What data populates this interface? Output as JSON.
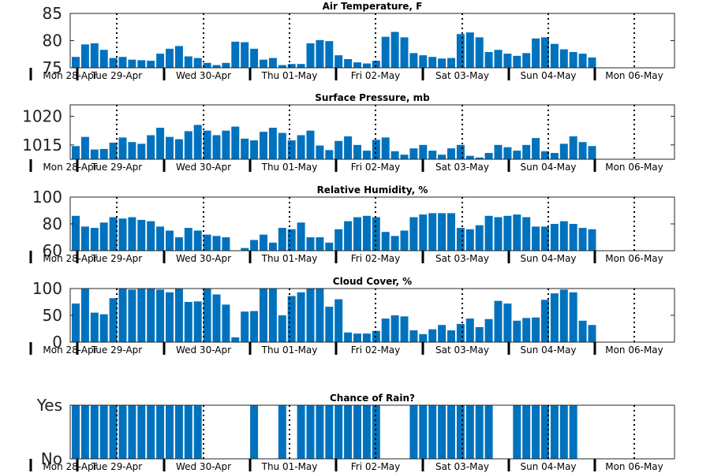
{
  "chart_data": [
    {
      "type": "bar",
      "title": "Air Temperature, F",
      "ylim": [
        75,
        85
      ],
      "yticks": [
        "75",
        "80",
        "85"
      ],
      "bar_color": "#0072BD",
      "values": [
        77.0,
        79.3,
        79.5,
        78.3,
        76.8,
        77.0,
        76.5,
        76.4,
        76.3,
        77.6,
        78.5,
        79.0,
        77.1,
        76.8,
        75.9,
        75.5,
        75.9,
        79.8,
        79.7,
        78.5,
        76.5,
        76.8,
        75.5,
        75.7,
        75.7,
        79.5,
        80.1,
        79.9,
        77.3,
        76.6,
        76.0,
        75.8,
        76.3,
        80.7,
        81.6,
        80.6,
        77.7,
        77.3,
        77.0,
        76.7,
        76.8,
        81.2,
        81.5,
        80.6,
        77.9,
        78.3,
        77.6,
        77.2,
        77.7,
        80.4,
        80.6,
        79.4,
        78.4,
        77.9,
        77.6,
        76.9
      ],
      "xtick_labels": [
        "Mon 28-Apr",
        "Tue 29-Apr",
        "Wed 30-Apr",
        "Thu 01-May",
        "Fri 02-May",
        "Sat 03-May",
        "Sun 04-May",
        "Mon 06-May"
      ]
    },
    {
      "type": "bar",
      "title": "Surface Pressure, mb",
      "ylim": [
        1012.5,
        1022
      ],
      "yticks": [
        "1015",
        "1020"
      ],
      "bar_color": "#0072BD",
      "values": [
        1014.8,
        1016.4,
        1014.2,
        1014.3,
        1015.4,
        1016.3,
        1015.5,
        1015.2,
        1016.7,
        1018.0,
        1016.4,
        1016.0,
        1017.4,
        1018.5,
        1017.5,
        1016.7,
        1017.5,
        1018.2,
        1016.1,
        1015.8,
        1017.3,
        1018.0,
        1017.1,
        1015.8,
        1016.7,
        1017.5,
        1014.9,
        1014.1,
        1015.7,
        1016.5,
        1015.0,
        1014.0,
        1015.9,
        1016.3,
        1013.9,
        1013.3,
        1014.4,
        1015.0,
        1014.0,
        1013.3,
        1014.4,
        1015.0,
        1013.1,
        1012.8,
        1013.6,
        1015.0,
        1014.6,
        1014.0,
        1015.0,
        1016.2,
        1013.9,
        1013.6,
        1015.2,
        1016.5,
        1015.5,
        1014.8
      ],
      "xtick_labels": [
        "Mon 28-Apr",
        "Tue 29-Apr",
        "Wed 30-Apr",
        "Thu 01-May",
        "Fri 02-May",
        "Sat 03-May",
        "Sun 04-May",
        "Mon 06-May"
      ]
    },
    {
      "type": "bar",
      "title": "Relative Humidity, %",
      "ylim": [
        60,
        100
      ],
      "yticks": [
        "60",
        "80",
        "100"
      ],
      "bar_color": "#0072BD",
      "values": [
        86,
        78,
        77,
        81,
        85,
        84,
        85,
        83,
        82,
        78,
        75,
        70,
        77,
        75,
        72,
        71,
        70,
        58,
        62,
        68,
        72,
        66,
        77,
        76,
        81,
        70,
        70,
        66,
        76,
        82,
        85,
        86,
        85,
        74,
        71,
        75,
        85,
        87,
        88,
        88,
        88,
        77,
        76,
        79,
        86,
        85,
        86,
        87,
        85,
        78,
        78,
        80,
        82,
        80,
        77,
        76
      ],
      "xtick_labels": [
        "Mon 28-Apr",
        "Tue 29-Apr",
        "Wed 30-Apr",
        "Thu 01-May",
        "Fri 02-May",
        "Sat 03-May",
        "Sun 04-May",
        "Mon 06-May"
      ]
    },
    {
      "type": "bar",
      "title": "Cloud Cover, %",
      "ylim": [
        0,
        100
      ],
      "yticks": [
        "0",
        "50",
        "100"
      ],
      "bar_color": "#0072BD",
      "values": [
        72,
        100,
        55,
        52,
        82,
        100,
        98,
        100,
        100,
        98,
        93,
        100,
        75,
        76,
        100,
        89,
        70,
        9,
        57,
        58,
        100,
        100,
        50,
        86,
        93,
        100,
        100,
        66,
        80,
        18,
        16,
        16,
        21,
        44,
        50,
        48,
        22,
        15,
        24,
        32,
        22,
        34,
        44,
        28,
        43,
        77,
        72,
        40,
        45,
        46,
        79,
        91,
        98,
        93,
        40,
        32
      ],
      "xtick_labels": [
        "Mon 28-Apr",
        "Tue 29-Apr",
        "Wed 30-Apr",
        "Thu 01-May",
        "Fri 02-May",
        "Sat 03-May",
        "Sun 04-May",
        "Mon 06-May"
      ]
    },
    {
      "type": "bar",
      "title": "Chance of Rain?",
      "ylim": [
        0,
        1
      ],
      "yticks": [
        "No",
        "Yes"
      ],
      "bar_color": "#0072BD",
      "values": [
        1,
        1,
        1,
        1,
        1,
        1,
        1,
        1,
        1,
        1,
        1,
        1,
        1,
        1,
        0,
        0,
        0,
        0,
        0,
        1,
        0,
        0,
        1,
        0,
        1,
        1,
        1,
        1,
        1,
        1,
        1,
        1,
        1,
        0,
        0,
        0,
        1,
        1,
        1,
        1,
        1,
        1,
        1,
        1,
        1,
        0,
        0,
        1,
        1,
        1,
        1,
        1,
        1,
        1,
        0,
        0
      ],
      "xtick_labels": [
        "Mon 28-Apr",
        "Tue 29-Apr",
        "Wed 30-Apr",
        "Thu 01-May",
        "Fri 02-May",
        "Sat 03-May",
        "Sun 04-May",
        "Mon 06-May"
      ]
    }
  ]
}
